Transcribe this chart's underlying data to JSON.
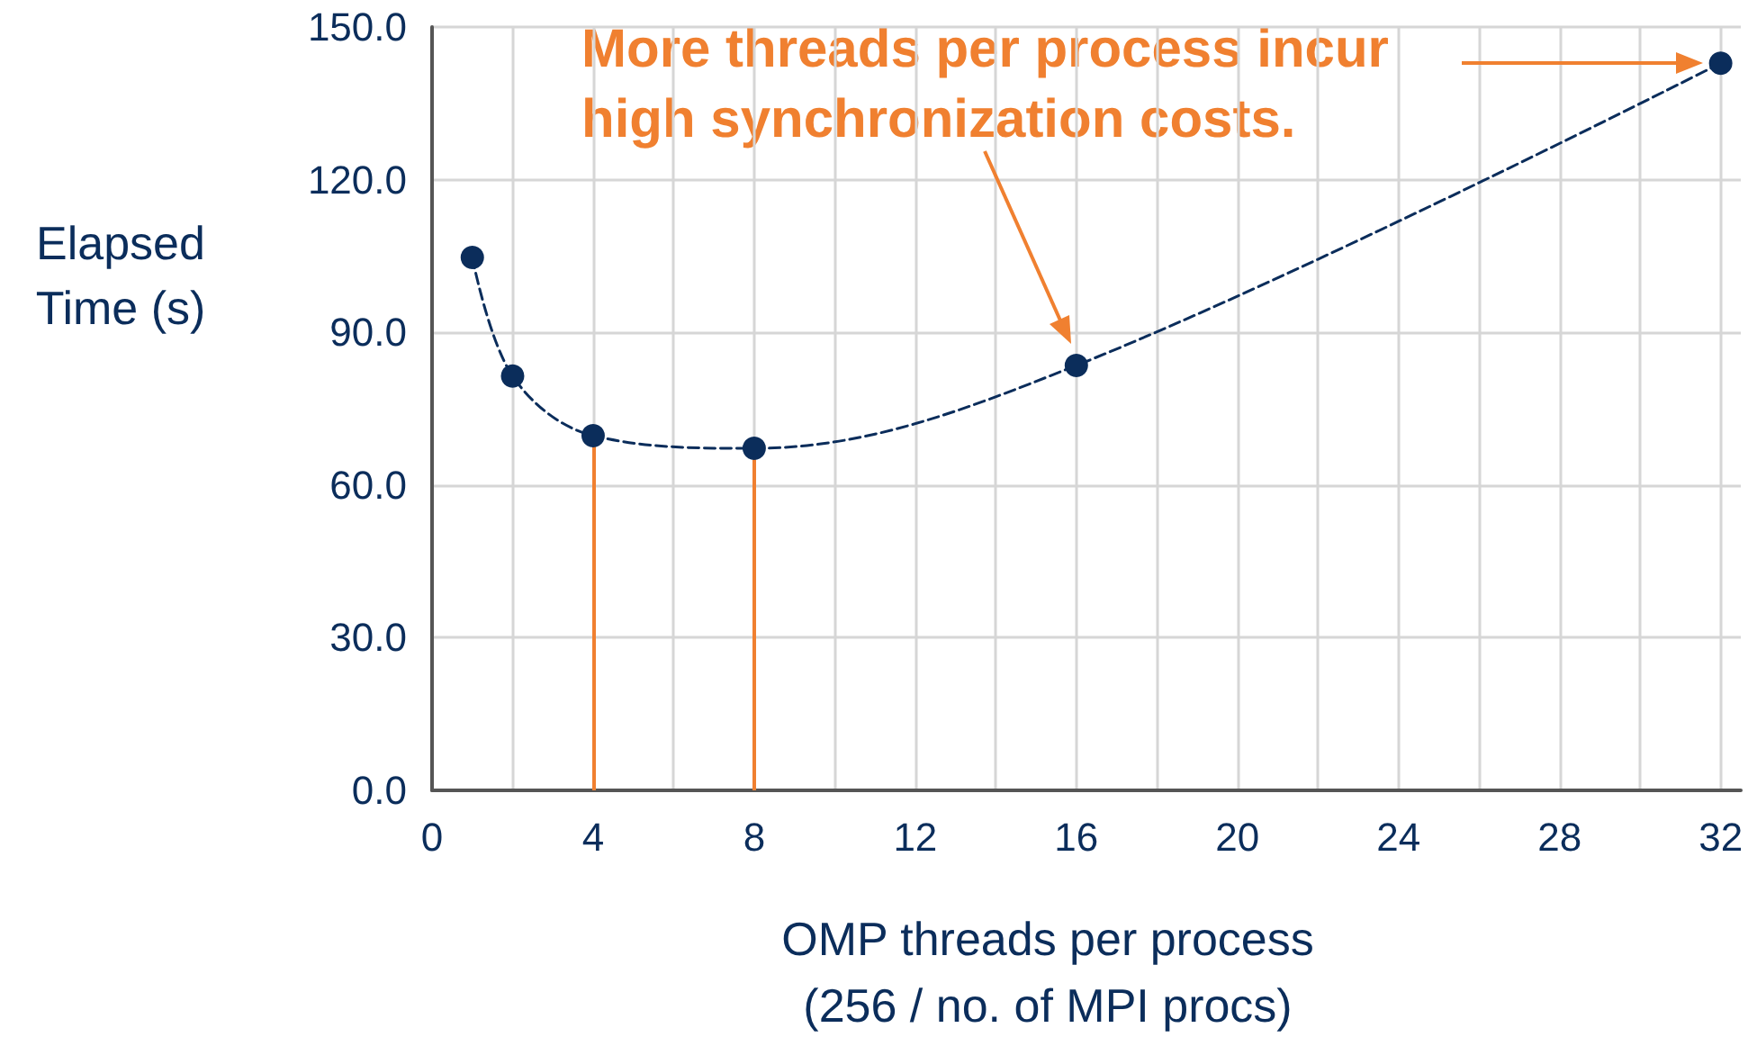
{
  "chart_data": {
    "type": "line",
    "xlabel": "OMP threads per process\n(256 / no. of MPI procs)",
    "ylabel": "Elapsed\nTime (s)",
    "x": [
      1,
      2,
      4,
      8,
      16,
      32
    ],
    "series": [
      {
        "color": "#0b2d5b",
        "values": [
          104.7,
          81.4,
          69.7,
          67.2,
          83.5,
          142.9
        ]
      }
    ],
    "xlim": [
      0,
      32.5
    ],
    "xticks": [
      0,
      {
        "value": 2,
        "label": null
      },
      4,
      {
        "value": 6,
        "label": null
      },
      8,
      {
        "value": 10,
        "label": null
      },
      12,
      {
        "value": 14,
        "label": null
      },
      16,
      {
        "value": 18,
        "label": null
      },
      20,
      {
        "value": 22,
        "label": null
      },
      24,
      {
        "value": 26,
        "label": null
      },
      28,
      {
        "value": 30,
        "label": null
      },
      32
    ],
    "ylim": [
      0,
      150
    ],
    "yticks": [
      {
        "value": 0,
        "label": "0.0"
      },
      {
        "value": 30,
        "label": "30.0"
      },
      {
        "value": 60,
        "label": "60.0"
      },
      {
        "value": 90,
        "label": "90.0"
      },
      {
        "value": 120,
        "label": "120.0"
      },
      {
        "value": 150,
        "label": "150.0"
      }
    ],
    "ref_lines": [
      {
        "axis": "x",
        "value": 4,
        "color": "#f08030"
      },
      {
        "axis": "x",
        "value": 8,
        "color": "#f08030"
      }
    ],
    "annotations": [
      "More threads per process incur\nhigh synchronization costs."
    ],
    "grid": true,
    "marker": "circle",
    "line_style": "dashed"
  }
}
